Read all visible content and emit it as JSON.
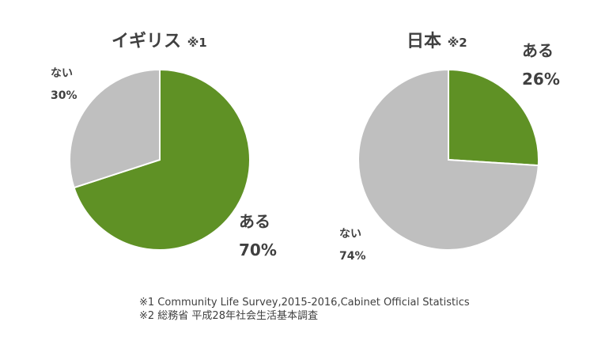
{
  "colors": {
    "green": "#5f9125",
    "gray": "#bfbfbf",
    "stroke": "#ffffff"
  },
  "chart_data": [
    {
      "type": "pie",
      "title": "イギリス",
      "note": "※1",
      "slices": [
        {
          "label": "ある",
          "value": 70,
          "display": "70%",
          "color": "#5f9125"
        },
        {
          "label": "ない",
          "value": 30,
          "display": "30%",
          "color": "#bfbfbf"
        }
      ]
    },
    {
      "type": "pie",
      "title": "日本",
      "note": "※2",
      "slices": [
        {
          "label": "ある",
          "value": 26,
          "display": "26%",
          "color": "#5f9125"
        },
        {
          "label": "ない",
          "value": 74,
          "display": "74%",
          "color": "#bfbfbf"
        }
      ]
    }
  ],
  "footnotes": [
    "※1 Community Life Survey,2015-2016,Cabinet Official Statistics",
    "※2 総務省 平成28年社会生活基本調査"
  ]
}
